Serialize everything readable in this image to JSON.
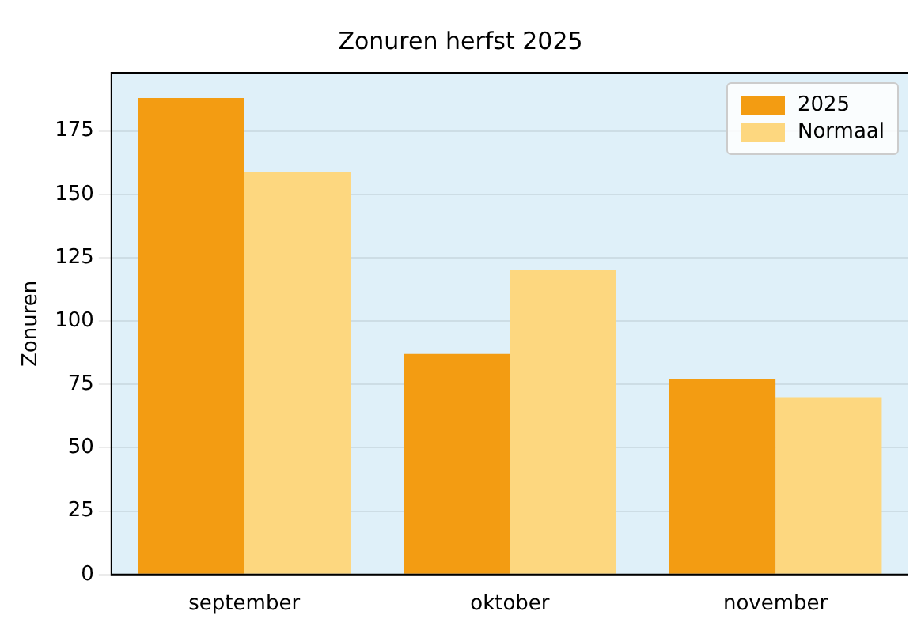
{
  "chart_data": {
    "type": "bar",
    "title": "Zonuren herfst 2025",
    "ylabel": "Zonuren",
    "categories": [
      "september",
      "oktober",
      "november"
    ],
    "series": [
      {
        "name": "2025",
        "color": "#f39c12",
        "values": [
          188,
          87,
          77
        ]
      },
      {
        "name": "Normaal",
        "color": "#fdd77f",
        "values": [
          159,
          120,
          70
        ]
      }
    ],
    "ylim": [
      0,
      198
    ],
    "yticks": [
      0,
      25,
      50,
      75,
      100,
      125,
      150,
      175
    ],
    "grid": "y",
    "legend": "top right"
  }
}
